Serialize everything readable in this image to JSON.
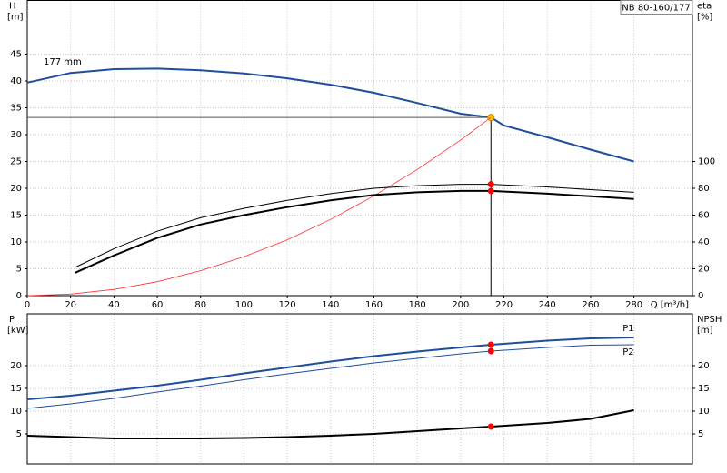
{
  "chart_data": [
    {
      "type": "line",
      "title": "NB 80-160/177",
      "xlabel": "Q [m³/h]",
      "ylabel": "H",
      "yunit": "[m]",
      "y2label": "eta",
      "y2unit": "[%]",
      "xlim": [
        0,
        307
      ],
      "xticks": [
        0,
        20,
        40,
        60,
        80,
        100,
        120,
        140,
        160,
        180,
        200,
        220,
        240,
        260,
        280
      ],
      "ylim": [
        0,
        55
      ],
      "yticks": [
        0,
        5,
        10,
        15,
        20,
        25,
        30,
        35,
        40,
        45
      ],
      "y2lim": [
        0,
        220
      ],
      "y2ticks": [
        0,
        20,
        40,
        60,
        80,
        100
      ],
      "grid": true,
      "duty_x": 214,
      "series": [
        {
          "name": "177 mm",
          "color": "#1f4e9a",
          "width": 2,
          "marker": "#ffcc00",
          "x": [
            0,
            20,
            40,
            60,
            80,
            100,
            120,
            140,
            160,
            180,
            200,
            214,
            220,
            240,
            260,
            280
          ],
          "values": [
            39.7,
            41.5,
            42.2,
            42.3,
            42.0,
            41.4,
            40.5,
            39.3,
            37.8,
            35.9,
            33.9,
            33.2,
            31.7,
            29.5,
            27.2,
            25.0
          ]
        },
        {
          "color": "#ff3030",
          "width": 0.8,
          "x": [
            0,
            20,
            40,
            60,
            80,
            100,
            120,
            140,
            160,
            180,
            200,
            214
          ],
          "values": [
            0,
            0.29,
            1.16,
            2.6,
            4.64,
            7.25,
            10.4,
            14.2,
            18.6,
            23.5,
            29.0,
            33.2
          ]
        },
        {
          "color": "#000000",
          "width": 1,
          "axis": "y2",
          "marker": "#ff0000",
          "x": [
            22,
            40,
            60,
            80,
            100,
            120,
            140,
            160,
            180,
            200,
            214,
            240,
            260,
            280
          ],
          "values": [
            21,
            35,
            48,
            58,
            65,
            71,
            76,
            80,
            82,
            83,
            83,
            81,
            79,
            77
          ]
        },
        {
          "color": "#000000",
          "width": 2,
          "axis": "y2",
          "marker": "#ff0000",
          "x": [
            22,
            40,
            60,
            80,
            100,
            120,
            140,
            160,
            180,
            200,
            214,
            240,
            260,
            280
          ],
          "values": [
            17,
            30,
            43,
            53,
            60,
            66,
            71,
            75,
            77,
            78,
            78,
            76,
            74,
            72
          ]
        }
      ]
    },
    {
      "type": "line",
      "ylabel": "P",
      "yunit": "[kW]",
      "y2label": "NPSH",
      "y2unit": "[m]",
      "xlim": [
        0,
        307
      ],
      "ylim": [
        -1.6,
        31.4
      ],
      "yticks": [
        5,
        10,
        15,
        20
      ],
      "y2lim": [
        -1.6,
        31.4
      ],
      "y2ticks": [
        5,
        10,
        15,
        20
      ],
      "grid": true,
      "duty_x": 214,
      "series": [
        {
          "name": "P1",
          "color": "#1f4e9a",
          "width": 2,
          "marker": "#ff0000",
          "x": [
            0,
            20,
            40,
            60,
            80,
            100,
            120,
            140,
            160,
            180,
            200,
            214,
            240,
            260,
            280
          ],
          "values": [
            12.6,
            13.4,
            14.5,
            15.6,
            16.9,
            18.3,
            19.6,
            20.9,
            22.1,
            23.1,
            24.0,
            24.6,
            25.5,
            26.0,
            26.2
          ]
        },
        {
          "name": "P2",
          "color": "#1f4e9a",
          "width": 1,
          "marker": "#ff0000",
          "x": [
            0,
            20,
            40,
            60,
            80,
            100,
            120,
            140,
            160,
            180,
            200,
            214,
            240,
            260,
            280
          ],
          "values": [
            10.6,
            11.6,
            12.8,
            14.2,
            15.5,
            16.9,
            18.2,
            19.4,
            20.6,
            21.6,
            22.6,
            23.2,
            24.0,
            24.5,
            24.6
          ]
        },
        {
          "color": "#000000",
          "width": 2,
          "axis": "y2",
          "marker": "#ff0000",
          "x": [
            0,
            20,
            40,
            60,
            80,
            100,
            120,
            140,
            160,
            180,
            200,
            214,
            240,
            260,
            280
          ],
          "values": [
            4.6,
            4.3,
            4.0,
            4.0,
            4.0,
            4.1,
            4.3,
            4.6,
            5.0,
            5.6,
            6.2,
            6.6,
            7.4,
            8.3,
            10.2
          ]
        }
      ]
    }
  ]
}
